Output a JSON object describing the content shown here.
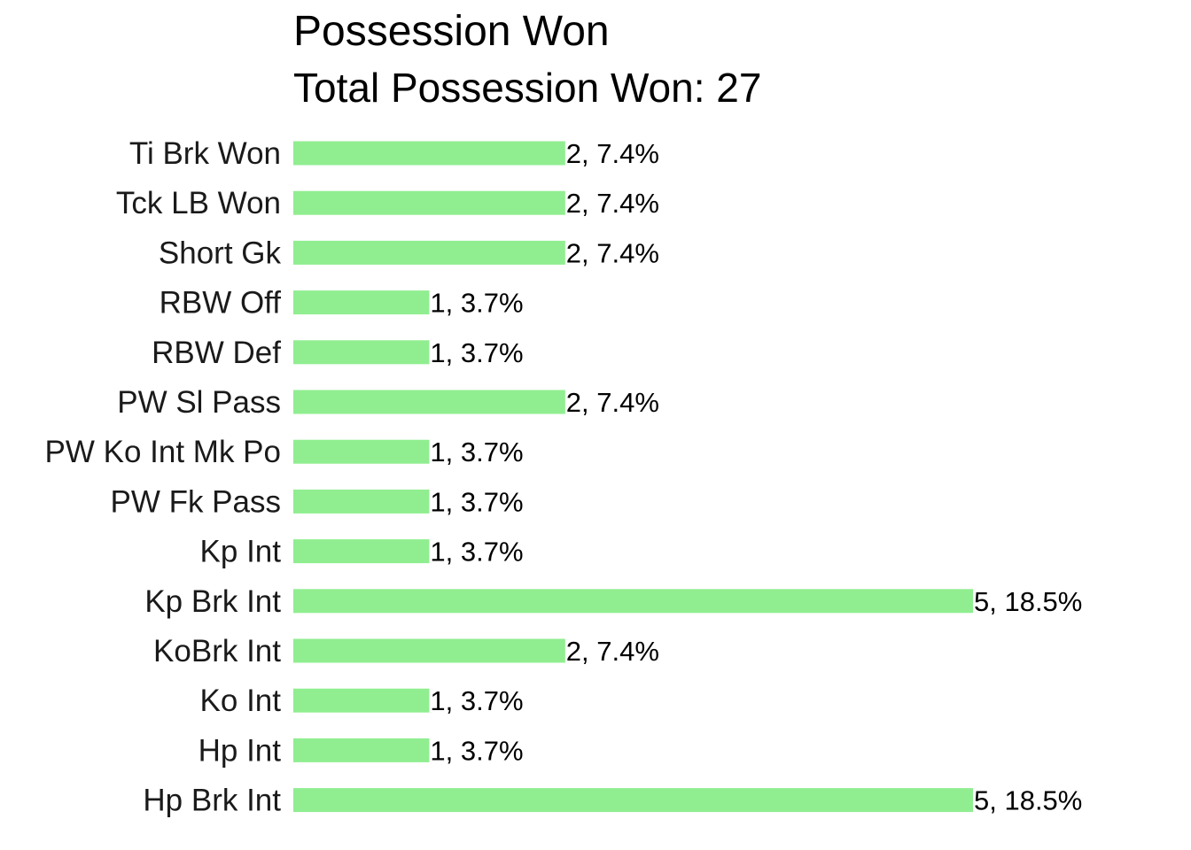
{
  "chart_data": {
    "type": "bar",
    "orientation": "horizontal",
    "title": "Possession Won",
    "subtitle": "Total Possession Won: 27",
    "xlabel": "",
    "ylabel": "",
    "categories": [
      "Ti Brk Won",
      "Tck LB Won",
      "Short Gk",
      "RBW Off",
      "RBW Def",
      "PW Sl Pass",
      "PW Ko Int Mk Po",
      "PW Fk Pass",
      "Kp Int",
      "Kp Brk Int",
      "KoBrk Int",
      "Ko Int",
      "Hp Int",
      "Hp Brk Int"
    ],
    "values": [
      2,
      2,
      2,
      1,
      1,
      2,
      1,
      1,
      1,
      5,
      2,
      1,
      1,
      5
    ],
    "data_labels": [
      "2, 7.4%",
      "2, 7.4%",
      "2, 7.4%",
      "1, 3.7%",
      "1, 3.7%",
      "2, 7.4%",
      "1, 3.7%",
      "1, 3.7%",
      "1, 3.7%",
      "5, 18.5%",
      "2, 7.4%",
      "1, 3.7%",
      "1, 3.7%",
      "5, 18.5%"
    ],
    "xlim": [
      0,
      5
    ],
    "grid": false,
    "legend": "none",
    "bar_color": "#90EE90"
  }
}
